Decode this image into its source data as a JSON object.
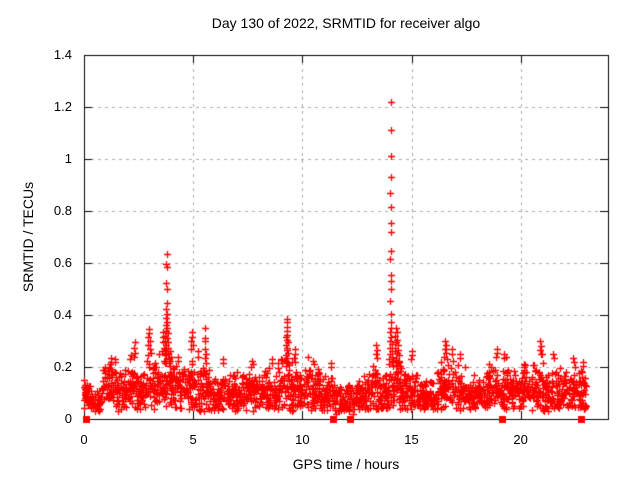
{
  "page": {
    "background": "#ffffff"
  },
  "chart_data": {
    "type": "scatter",
    "title": "Day 130 of 2022, SRMTID for receiver algo",
    "xlabel": "GPS time / hours",
    "ylabel": "SRMTID / TECUs",
    "xlim": [
      0,
      24
    ],
    "ylim": [
      0,
      1.4
    ],
    "xticks": [
      0,
      5,
      10,
      15,
      20
    ],
    "xtick_labels": [
      "0",
      "5",
      "10",
      "15",
      "20"
    ],
    "yticks": [
      0,
      0.2,
      0.4,
      0.6,
      0.8,
      1.0,
      1.2,
      1.4
    ],
    "ytick_labels": [
      "0",
      "0.2",
      "0.4",
      "0.6",
      "0.8",
      "1",
      "1.2",
      "1.4"
    ],
    "grid": true,
    "legend": "none",
    "style": {
      "marker": "plus",
      "marker_size": 7,
      "marker_color": "#ff0000",
      "zero_marker": "filled-square",
      "grid_color": "#ababab",
      "frame_color": "#000000",
      "background": "#ffffff"
    },
    "zero_points": [
      [
        0.08,
        0
      ],
      [
        11.4,
        0
      ],
      [
        12.2,
        0
      ],
      [
        19.15,
        0
      ],
      [
        22.78,
        0
      ]
    ],
    "spike_points": [
      [
        0.03,
        0.13
      ],
      [
        0.05,
        0.125
      ],
      [
        0.07,
        0.12
      ],
      [
        0.04,
        0.115
      ],
      [
        0.08,
        0.11
      ],
      [
        0.06,
        0.105
      ],
      [
        0.09,
        0.1
      ],
      [
        0.05,
        0.095
      ],
      [
        0.1,
        0.09
      ],
      [
        0.07,
        0.085
      ],
      [
        0.12,
        0.08
      ],
      [
        0.09,
        0.075
      ],
      [
        1.22,
        0.235
      ],
      [
        1.25,
        0.22
      ],
      [
        1.19,
        0.21
      ],
      [
        2.32,
        0.295
      ],
      [
        2.3,
        0.275
      ],
      [
        2.34,
        0.255
      ],
      [
        2.28,
        0.24
      ],
      [
        2.97,
        0.345
      ],
      [
        2.99,
        0.33
      ],
      [
        2.95,
        0.315
      ],
      [
        3.01,
        0.3
      ],
      [
        2.93,
        0.285
      ],
      [
        3.03,
        0.27
      ],
      [
        3.06,
        0.255
      ],
      [
        2.91,
        0.245
      ],
      [
        3.62,
        0.335
      ],
      [
        3.63,
        0.315
      ],
      [
        3.6,
        0.295
      ],
      [
        3.65,
        0.275
      ],
      [
        3.58,
        0.26
      ],
      [
        3.78,
        0.635
      ],
      [
        3.77,
        0.595
      ],
      [
        3.79,
        0.585
      ],
      [
        3.76,
        0.525
      ],
      [
        3.78,
        0.5
      ],
      [
        3.8,
        0.445
      ],
      [
        3.77,
        0.425
      ],
      [
        3.79,
        0.405
      ],
      [
        3.75,
        0.39
      ],
      [
        3.81,
        0.375
      ],
      [
        3.74,
        0.36
      ],
      [
        3.82,
        0.35
      ],
      [
        3.76,
        0.34
      ],
      [
        3.83,
        0.33
      ],
      [
        3.73,
        0.32
      ],
      [
        3.8,
        0.31
      ],
      [
        3.72,
        0.3
      ],
      [
        3.84,
        0.295
      ],
      [
        3.75,
        0.285
      ],
      [
        3.85,
        0.275
      ],
      [
        3.71,
        0.265
      ],
      [
        3.86,
        0.255
      ],
      [
        3.7,
        0.245
      ],
      [
        3.88,
        0.235
      ],
      [
        3.68,
        0.225
      ],
      [
        3.9,
        0.215
      ],
      [
        3.92,
        0.205
      ],
      [
        3.96,
        0.26
      ],
      [
        3.97,
        0.24
      ],
      [
        3.94,
        0.225
      ],
      [
        4.3,
        0.24
      ],
      [
        4.32,
        0.225
      ],
      [
        4.94,
        0.335
      ],
      [
        4.96,
        0.315
      ],
      [
        4.92,
        0.3
      ],
      [
        4.98,
        0.285
      ],
      [
        4.9,
        0.27
      ],
      [
        5.2,
        0.26
      ],
      [
        5.22,
        0.24
      ],
      [
        5.55,
        0.35
      ],
      [
        5.54,
        0.31
      ],
      [
        5.56,
        0.3
      ],
      [
        5.55,
        0.27
      ],
      [
        5.57,
        0.25
      ],
      [
        5.53,
        0.235
      ],
      [
        5.58,
        0.215
      ],
      [
        6.35,
        0.23
      ],
      [
        6.37,
        0.215
      ],
      [
        7.7,
        0.225
      ],
      [
        7.72,
        0.21
      ],
      [
        8.6,
        0.23
      ],
      [
        8.62,
        0.215
      ],
      [
        9.3,
        0.385
      ],
      [
        9.28,
        0.375
      ],
      [
        9.31,
        0.355
      ],
      [
        9.29,
        0.34
      ],
      [
        9.32,
        0.325
      ],
      [
        9.27,
        0.315
      ],
      [
        9.3,
        0.305
      ],
      [
        9.33,
        0.295
      ],
      [
        9.26,
        0.285
      ],
      [
        9.31,
        0.275
      ],
      [
        9.28,
        0.265
      ],
      [
        9.34,
        0.255
      ],
      [
        9.25,
        0.245
      ],
      [
        9.32,
        0.235
      ],
      [
        9.27,
        0.225
      ],
      [
        9.35,
        0.215
      ],
      [
        9.23,
        0.205
      ],
      [
        9.65,
        0.27
      ],
      [
        9.67,
        0.25
      ],
      [
        9.63,
        0.235
      ],
      [
        9.68,
        0.22
      ],
      [
        10.5,
        0.225
      ],
      [
        10.52,
        0.21
      ],
      [
        11.3,
        0.215
      ],
      [
        11.32,
        0.2
      ],
      [
        11.56,
        0.018
      ],
      [
        12.32,
        0.02
      ],
      [
        13.38,
        0.285
      ],
      [
        13.4,
        0.265
      ],
      [
        13.36,
        0.25
      ],
      [
        13.42,
        0.235
      ],
      [
        14.05,
        1.22
      ],
      [
        14.04,
        1.11
      ],
      [
        14.06,
        1.01
      ],
      [
        14.05,
        0.93
      ],
      [
        14.03,
        0.87
      ],
      [
        14.06,
        0.815
      ],
      [
        14.04,
        0.755
      ],
      [
        14.07,
        0.72
      ],
      [
        14.05,
        0.645
      ],
      [
        14.03,
        0.615
      ],
      [
        14.06,
        0.555
      ],
      [
        14.08,
        0.53
      ],
      [
        14.04,
        0.5
      ],
      [
        14.02,
        0.455
      ],
      [
        14.06,
        0.405
      ],
      [
        14.05,
        0.375
      ],
      [
        14.07,
        0.35
      ],
      [
        14.03,
        0.335
      ],
      [
        14.08,
        0.315
      ],
      [
        14.02,
        0.3
      ],
      [
        14.09,
        0.29
      ],
      [
        14.01,
        0.275
      ],
      [
        14.1,
        0.26
      ],
      [
        14.0,
        0.25
      ],
      [
        14.11,
        0.24
      ],
      [
        13.99,
        0.23
      ],
      [
        14.12,
        0.22
      ],
      [
        13.98,
        0.21
      ],
      [
        14.28,
        0.35
      ],
      [
        14.32,
        0.335
      ],
      [
        14.26,
        0.32
      ],
      [
        14.35,
        0.305
      ],
      [
        14.3,
        0.295
      ],
      [
        14.38,
        0.285
      ],
      [
        14.24,
        0.275
      ],
      [
        14.4,
        0.265
      ],
      [
        14.33,
        0.255
      ],
      [
        14.42,
        0.245
      ],
      [
        14.29,
        0.235
      ],
      [
        14.44,
        0.225
      ],
      [
        14.36,
        0.215
      ],
      [
        14.46,
        0.205
      ],
      [
        15.0,
        0.26
      ],
      [
        15.02,
        0.245
      ],
      [
        14.98,
        0.23
      ],
      [
        16.55,
        0.3
      ],
      [
        16.57,
        0.285
      ],
      [
        16.53,
        0.27
      ],
      [
        16.59,
        0.255
      ],
      [
        16.51,
        0.24
      ],
      [
        16.61,
        0.23
      ],
      [
        16.85,
        0.27
      ],
      [
        16.87,
        0.25
      ],
      [
        17.2,
        0.25
      ],
      [
        17.22,
        0.235
      ],
      [
        18.9,
        0.27
      ],
      [
        18.92,
        0.255
      ],
      [
        18.88,
        0.24
      ],
      [
        19.22,
        0.25
      ],
      [
        19.24,
        0.235
      ],
      [
        20.9,
        0.3
      ],
      [
        20.92,
        0.28
      ],
      [
        20.88,
        0.265
      ],
      [
        20.94,
        0.25
      ],
      [
        21.5,
        0.25
      ],
      [
        21.52,
        0.235
      ],
      [
        22.4,
        0.235
      ],
      [
        22.42,
        0.22
      ],
      [
        22.85,
        0.22
      ],
      [
        22.87,
        0.205
      ]
    ],
    "baseline_band": {
      "seed": 1130,
      "points_per_hour": 88,
      "y_floor": 0.03,
      "segments": [
        [
          0.0,
          0.35,
          0.085,
          0.05,
          0.15
        ],
        [
          0.35,
          0.8,
          0.06,
          0.04,
          0.12
        ],
        [
          0.8,
          1.45,
          0.125,
          0.07,
          0.23
        ],
        [
          1.45,
          1.85,
          0.1,
          0.06,
          0.18
        ],
        [
          1.85,
          2.45,
          0.115,
          0.07,
          0.25
        ],
        [
          2.45,
          2.9,
          0.1,
          0.06,
          0.2
        ],
        [
          2.9,
          3.35,
          0.13,
          0.08,
          0.3
        ],
        [
          3.35,
          3.65,
          0.115,
          0.07,
          0.25
        ],
        [
          3.65,
          4.0,
          0.15,
          0.09,
          0.3
        ],
        [
          4.0,
          4.55,
          0.115,
          0.07,
          0.24
        ],
        [
          4.55,
          5.15,
          0.125,
          0.08,
          0.28
        ],
        [
          5.15,
          5.75,
          0.11,
          0.07,
          0.24
        ],
        [
          5.75,
          6.3,
          0.095,
          0.06,
          0.18
        ],
        [
          6.3,
          7.25,
          0.095,
          0.06,
          0.2
        ],
        [
          7.25,
          8.25,
          0.1,
          0.06,
          0.2
        ],
        [
          8.25,
          8.85,
          0.105,
          0.07,
          0.22
        ],
        [
          8.85,
          9.55,
          0.12,
          0.08,
          0.26
        ],
        [
          9.55,
          10.25,
          0.11,
          0.07,
          0.24
        ],
        [
          10.25,
          10.85,
          0.115,
          0.07,
          0.22
        ],
        [
          10.85,
          11.45,
          0.095,
          0.06,
          0.2
        ],
        [
          11.45,
          12.05,
          0.065,
          0.045,
          0.13
        ],
        [
          12.05,
          12.75,
          0.08,
          0.05,
          0.15
        ],
        [
          12.75,
          13.55,
          0.1,
          0.07,
          0.24
        ],
        [
          13.55,
          13.95,
          0.095,
          0.06,
          0.18
        ],
        [
          13.95,
          14.2,
          0.12,
          0.08,
          0.26
        ],
        [
          14.2,
          14.55,
          0.125,
          0.08,
          0.28
        ],
        [
          14.55,
          15.25,
          0.105,
          0.07,
          0.24
        ],
        [
          15.25,
          16.15,
          0.085,
          0.05,
          0.16
        ],
        [
          16.15,
          17.05,
          0.12,
          0.08,
          0.26
        ],
        [
          17.05,
          17.45,
          0.105,
          0.06,
          0.22
        ],
        [
          17.45,
          18.45,
          0.085,
          0.05,
          0.17
        ],
        [
          18.45,
          19.35,
          0.115,
          0.07,
          0.24
        ],
        [
          19.35,
          20.15,
          0.105,
          0.06,
          0.21
        ],
        [
          20.15,
          21.15,
          0.115,
          0.07,
          0.25
        ],
        [
          21.15,
          22.15,
          0.105,
          0.06,
          0.22
        ],
        [
          22.15,
          23.0,
          0.105,
          0.06,
          0.21
        ]
      ]
    }
  }
}
